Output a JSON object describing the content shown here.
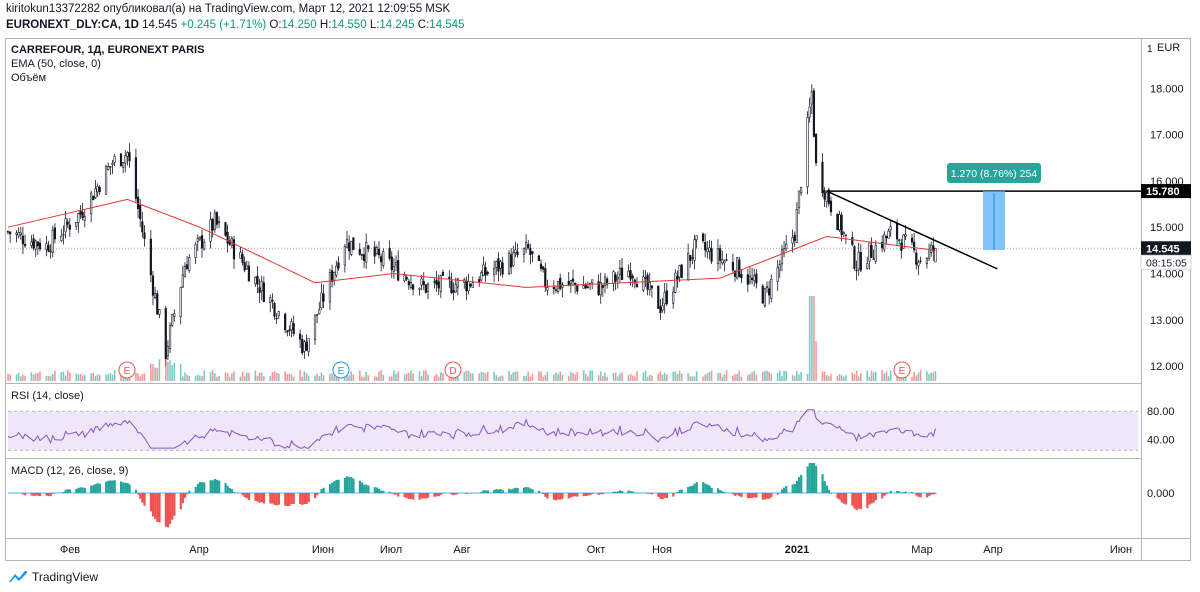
{
  "header": {
    "line1": "kiritokun13372282 опубликовал(а) на TradingView.com, Март 12, 2021 12:09:55 MSK",
    "symbol": "EURONEXT_DLY:CA, 1D",
    "last": "14.545",
    "change": "+0.245 (+1.71%)",
    "o_label": "O:",
    "o": "14.250",
    "h_label": "H:",
    "h": "14.550",
    "l_label": "L:",
    "l": "14.245",
    "c_label": "C:",
    "c": "14.545"
  },
  "legend": {
    "title": "CARREFOUR, 1Д, EURONEXT PARIS",
    "ema": "EMA (50, close, 0)",
    "volume": "Объём",
    "rsi": "RSI (14, close)",
    "macd": "MACD (12, 26, close, 9)"
  },
  "axis": {
    "currency": "EUR",
    "price_ticks": [
      "18.000",
      "17.000",
      "16.000",
      "15.000",
      "14.000",
      "13.000",
      "12.000"
    ],
    "rsi_ticks": [
      "80.00",
      "40.00"
    ],
    "macd_tick": "0.000",
    "time_ticks": [
      "Фев",
      "Апр",
      "Июн",
      "Июл",
      "Авг",
      "Окт",
      "Ноя",
      "2021",
      "Мар",
      "Апр",
      "Июн"
    ],
    "last_price_label": "14.545",
    "countdown": "08:15:05",
    "level_label": "15.780"
  },
  "annotation": {
    "measure": "1.270 (8.76%) 254"
  },
  "events": [
    "E",
    "E",
    "D",
    "E",
    "E"
  ],
  "footer": {
    "brand": "TradingView"
  },
  "colors": {
    "up": "#26a69a",
    "down": "#ef5350",
    "candle": "#131722",
    "ema": "#e53935",
    "rsi": "#7e57c2",
    "accent": "#2196f3"
  },
  "chart_data": {
    "type": "candlestick",
    "title": "CARREFOUR, 1Д, EURONEXT PARIS",
    "x_range": [
      "2020-01-02",
      "2021-06-15"
    ],
    "y_range": [
      11.7,
      19.0
    ],
    "approx_close_path": [
      {
        "x": "2020-01-02",
        "y": 14.9
      },
      {
        "x": "2020-01-20",
        "y": 14.6
      },
      {
        "x": "2020-02-05",
        "y": 15.3
      },
      {
        "x": "2020-02-20",
        "y": 16.4
      },
      {
        "x": "2020-02-27",
        "y": 16.6
      },
      {
        "x": "2020-03-03",
        "y": 15.4
      },
      {
        "x": "2020-03-16",
        "y": 12.3
      },
      {
        "x": "2020-03-25",
        "y": 14.2
      },
      {
        "x": "2020-04-08",
        "y": 15.1
      },
      {
        "x": "2020-04-28",
        "y": 13.8
      },
      {
        "x": "2020-05-20",
        "y": 12.4
      },
      {
        "x": "2020-06-08",
        "y": 14.7
      },
      {
        "x": "2020-06-25",
        "y": 14.3
      },
      {
        "x": "2020-07-15",
        "y": 13.7
      },
      {
        "x": "2020-08-05",
        "y": 13.8
      },
      {
        "x": "2020-09-02",
        "y": 14.5
      },
      {
        "x": "2020-09-10",
        "y": 13.8
      },
      {
        "x": "2020-10-06",
        "y": 13.7
      },
      {
        "x": "2020-10-20",
        "y": 14.1
      },
      {
        "x": "2020-11-03",
        "y": 13.3
      },
      {
        "x": "2020-11-20",
        "y": 14.6
      },
      {
        "x": "2020-12-10",
        "y": 14.1
      },
      {
        "x": "2020-12-22",
        "y": 13.5
      },
      {
        "x": "2021-01-05",
        "y": 14.9
      },
      {
        "x": "2021-01-13",
        "y": 17.9
      },
      {
        "x": "2021-01-15",
        "y": 16.3
      },
      {
        "x": "2021-01-20",
        "y": 15.7
      },
      {
        "x": "2021-02-03",
        "y": 14.2
      },
      {
        "x": "2021-02-20",
        "y": 14.9
      },
      {
        "x": "2021-03-05",
        "y": 14.3
      },
      {
        "x": "2021-03-12",
        "y": 14.545
      }
    ],
    "ema50_approx": [
      {
        "x": "2020-01-02",
        "y": 15.0
      },
      {
        "x": "2020-02-27",
        "y": 15.6
      },
      {
        "x": "2020-04-01",
        "y": 15.0
      },
      {
        "x": "2020-05-25",
        "y": 13.8
      },
      {
        "x": "2020-07-01",
        "y": 14.0
      },
      {
        "x": "2020-09-01",
        "y": 13.7
      },
      {
        "x": "2020-12-01",
        "y": 13.9
      },
      {
        "x": "2021-01-20",
        "y": 14.8
      },
      {
        "x": "2021-03-12",
        "y": 14.5
      }
    ],
    "rsi_range": [
      0,
      100
    ],
    "rsi_levels": [
      80,
      40
    ],
    "macd_zero": 0.0,
    "trendline": [
      {
        "x": "2021-01-20",
        "y": 15.78
      },
      {
        "x": "2021-04-10",
        "y": 14.1
      }
    ],
    "horizontal_level": 15.78,
    "measure": {
      "from": 14.51,
      "to": 15.78,
      "change": 1.27,
      "pct": 8.76,
      "bars": 254
    }
  }
}
